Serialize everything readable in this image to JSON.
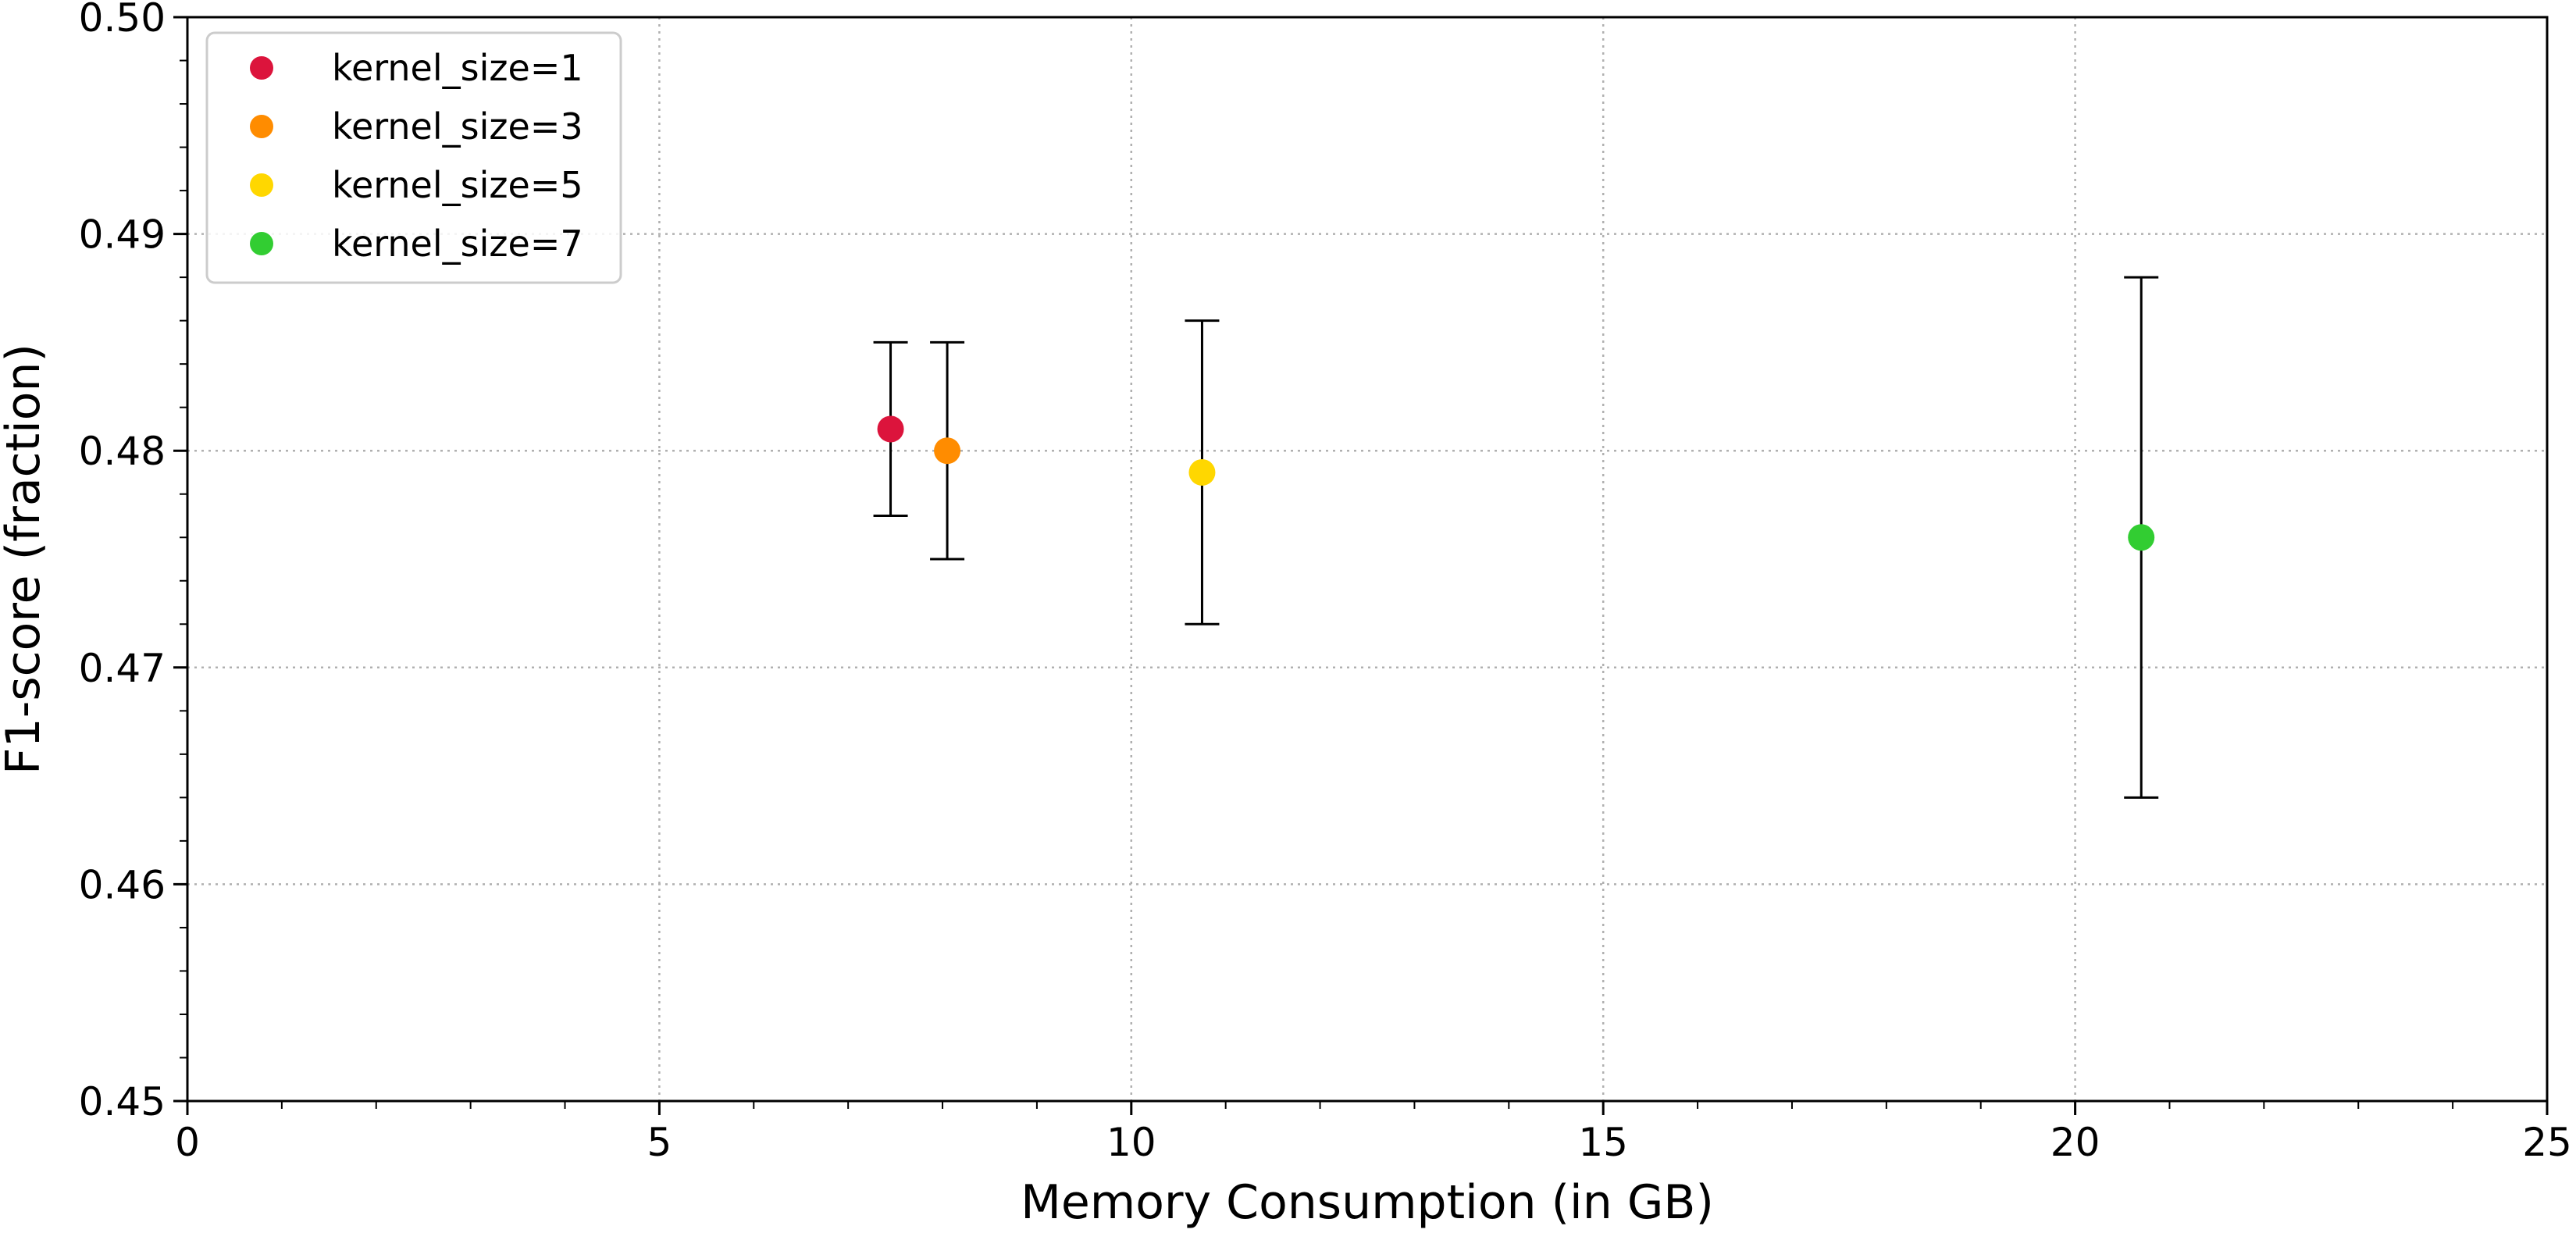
{
  "chart_data": {
    "type": "scatter",
    "title": "",
    "xlabel": "Memory Consumption (in GB)",
    "ylabel": "F1-score (fraction)",
    "xlim": [
      0,
      25
    ],
    "ylim": [
      0.45,
      0.5
    ],
    "xticks": [
      0,
      5,
      10,
      15,
      20,
      25
    ],
    "xtick_labels": [
      "0",
      "5",
      "10",
      "15",
      "20",
      "25"
    ],
    "yticks": [
      0.45,
      0.46,
      0.47,
      0.48,
      0.49,
      0.5
    ],
    "ytick_labels": [
      "0.45",
      "0.46",
      "0.47",
      "0.48",
      "0.49",
      "0.50"
    ],
    "grid": true,
    "legend_position": "top-left",
    "series": [
      {
        "name": "kernel_size=1",
        "color": "#dc143c",
        "x": 7.45,
        "y": 0.481,
        "err_low": 0.477,
        "err_high": 0.485
      },
      {
        "name": "kernel_size=3",
        "color": "#ff8c00",
        "x": 8.05,
        "y": 0.48,
        "err_low": 0.475,
        "err_high": 0.485
      },
      {
        "name": "kernel_size=5",
        "color": "#ffd700",
        "x": 10.75,
        "y": 0.479,
        "err_low": 0.472,
        "err_high": 0.486
      },
      {
        "name": "kernel_size=7",
        "color": "#32cd32",
        "x": 20.7,
        "y": 0.476,
        "err_low": 0.464,
        "err_high": 0.488
      }
    ]
  }
}
